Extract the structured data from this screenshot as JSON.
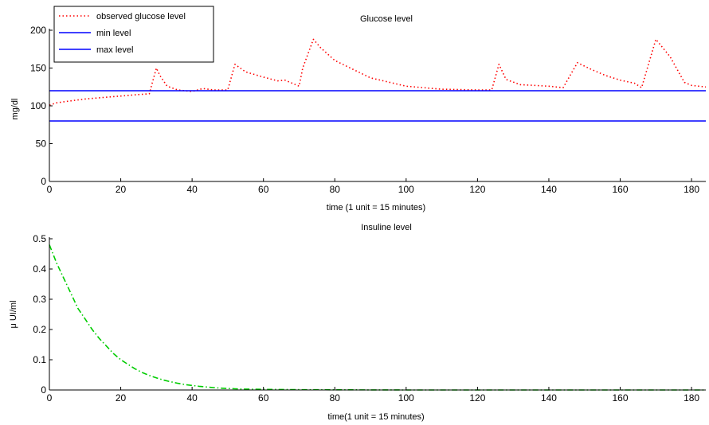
{
  "chart_data": [
    {
      "type": "line",
      "title": "Glucose level",
      "xlabel": "time (1 unit = 15 minutes)",
      "ylabel": "mg/dl",
      "xlim": [
        0,
        184
      ],
      "ylim": [
        0,
        200
      ],
      "xticks": [
        "0",
        "20",
        "40",
        "60",
        "80",
        "100",
        "120",
        "140",
        "160",
        "180"
      ],
      "yticks": [
        "0",
        "50",
        "100",
        "150",
        "200"
      ],
      "grid": false,
      "legend_position": "top-left",
      "series": [
        {
          "name": "observed glucose level",
          "color": "#ff0000",
          "style": "dotted",
          "x": [
            0,
            2,
            5,
            10,
            15,
            20,
            25,
            28,
            30,
            31,
            33,
            36,
            40,
            43,
            46,
            50,
            52,
            55,
            60,
            64,
            66,
            70,
            71,
            74,
            76,
            80,
            90,
            100,
            110,
            120,
            124,
            126,
            128,
            132,
            136,
            140,
            144,
            148,
            152,
            156,
            160,
            164,
            166,
            170,
            174,
            178,
            180,
            184
          ],
          "y": [
            101,
            104,
            106,
            109,
            111,
            113,
            115,
            116,
            150,
            140,
            126,
            121,
            119,
            123,
            121,
            121,
            155,
            145,
            138,
            133,
            134,
            126,
            150,
            188,
            177,
            160,
            137,
            126,
            122,
            121,
            121,
            155,
            135,
            128,
            127,
            126,
            124,
            157,
            148,
            140,
            134,
            130,
            124,
            188,
            165,
            131,
            127,
            125
          ]
        },
        {
          "name": "min level",
          "color": "#0000ff",
          "style": "solid",
          "x": [
            0,
            184
          ],
          "y": [
            80,
            80
          ]
        },
        {
          "name": "max level",
          "color": "#0000ff",
          "style": "solid",
          "x": [
            0,
            184
          ],
          "y": [
            120,
            120
          ]
        }
      ]
    },
    {
      "type": "line",
      "title": "Insuline level",
      "xlabel": "time(1 unit = 15 minutes)",
      "ylabel": "μ UI/ml",
      "xlim": [
        0,
        184
      ],
      "ylim": [
        0,
        0.5
      ],
      "xticks": [
        "0",
        "20",
        "40",
        "60",
        "80",
        "100",
        "120",
        "140",
        "160",
        "180"
      ],
      "yticks": [
        "0",
        "0.1",
        "0.2",
        "0.3",
        "0.4",
        "0.5"
      ],
      "grid": false,
      "series": [
        {
          "color": "#00cc00",
          "style": "dash-dot",
          "x": [
            0,
            2,
            4,
            6,
            8,
            10,
            12,
            14,
            16,
            18,
            20,
            22,
            24,
            26,
            28,
            30,
            32,
            34,
            36,
            38,
            40,
            42,
            44,
            46,
            48,
            50,
            52,
            55,
            60,
            70,
            80,
            100,
            120,
            140,
            160,
            184
          ],
          "y": [
            0.48,
            0.42,
            0.37,
            0.32,
            0.27,
            0.235,
            0.2,
            0.17,
            0.145,
            0.12,
            0.1,
            0.085,
            0.07,
            0.058,
            0.048,
            0.04,
            0.033,
            0.027,
            0.022,
            0.018,
            0.015,
            0.012,
            0.01,
            0.008,
            0.006,
            0.005,
            0.004,
            0.003,
            0.002,
            0.001,
            0.0005,
            0,
            0,
            0,
            0,
            0
          ]
        }
      ]
    }
  ]
}
